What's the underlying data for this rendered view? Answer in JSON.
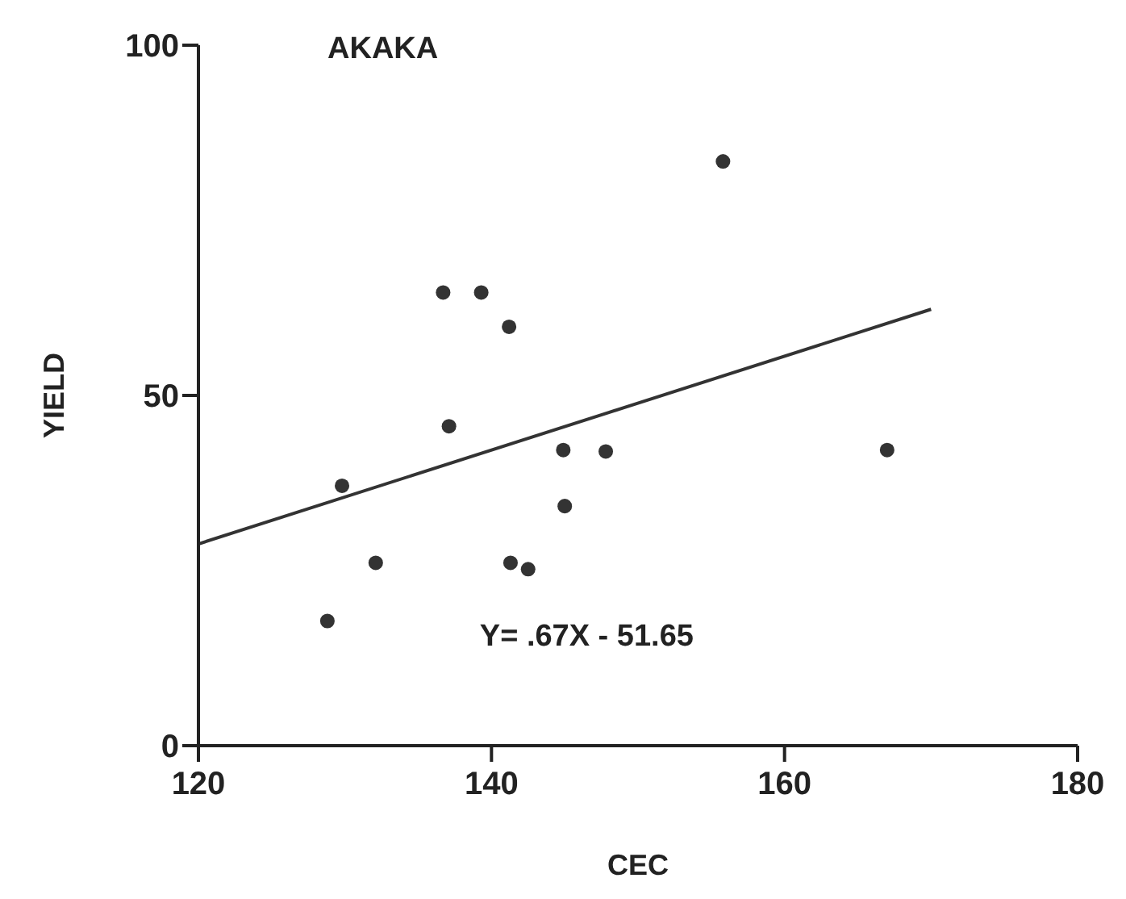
{
  "chart_data": {
    "type": "scatter",
    "title": "AKAKA",
    "xlabel": "CEC",
    "ylabel": "YIELD",
    "annotations": [
      "Y= .67X - 51.65"
    ],
    "xlim": [
      120,
      180
    ],
    "xticks": [
      120,
      140,
      160,
      180
    ],
    "ylim": [
      0,
      100
    ],
    "yticks": [
      0,
      50,
      100
    ],
    "series": [
      {
        "color": "#333333",
        "marker": "circle",
        "x": [
          129.8,
          128.8,
          132.1,
          136.7,
          137.1,
          139.3,
          141.2,
          141.3,
          142.5,
          144.9,
          145.0,
          147.8,
          155.8,
          167.0
        ],
        "values": [
          37.1,
          17.8,
          26.1,
          64.7,
          45.6,
          64.7,
          59.8,
          26.1,
          25.2,
          42.2,
          34.2,
          42.0,
          83.4,
          42.2
        ]
      },
      {
        "type": "line",
        "color": "#333333",
        "marker": "none",
        "x": [
          120,
          170
        ],
        "values": [
          28.8,
          62.3
        ]
      }
    ]
  }
}
